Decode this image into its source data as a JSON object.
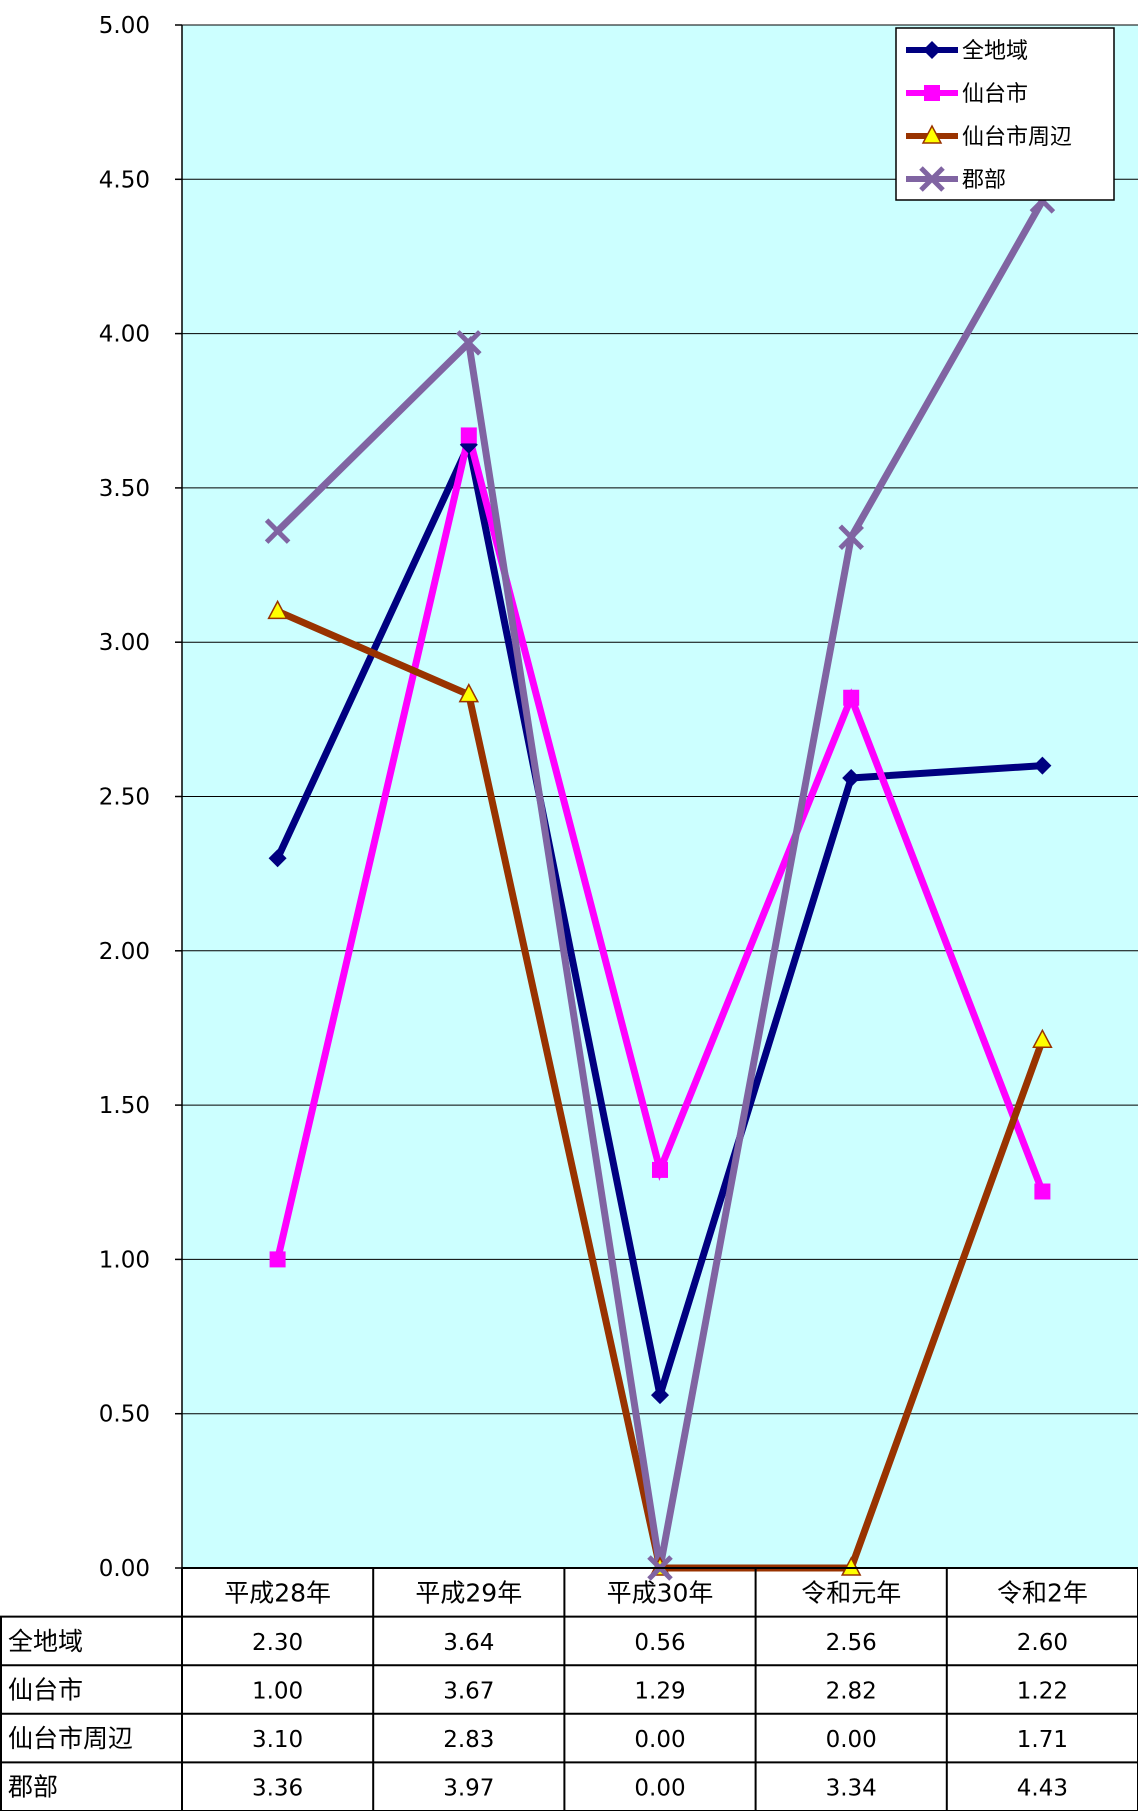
{
  "chart_data": {
    "type": "line",
    "categories": [
      "平成28年",
      "平成29年",
      "平成30年",
      "令和元年",
      "令和2年"
    ],
    "ylim": [
      0,
      5
    ],
    "yticks": [
      "0.00",
      "0.50",
      "1.00",
      "1.50",
      "2.00",
      "2.50",
      "3.00",
      "3.50",
      "4.00",
      "4.50",
      "5.00"
    ],
    "grid": true,
    "legend_position": "top-right",
    "plot_background": "#CCFFFF",
    "series": [
      {
        "name": "全地域",
        "color": "#000080",
        "marker": "diamond",
        "values": [
          2.3,
          3.64,
          0.56,
          2.56,
          2.6
        ],
        "labels": [
          "2.30",
          "3.64",
          "0.56",
          "2.56",
          "2.60"
        ]
      },
      {
        "name": "仙台市",
        "color": "#FF00FF",
        "marker": "square",
        "values": [
          1.0,
          3.67,
          1.29,
          2.82,
          1.22
        ],
        "labels": [
          "1.00",
          "3.67",
          "1.29",
          "2.82",
          "1.22"
        ]
      },
      {
        "name": "仙台市周辺",
        "color": "#993300",
        "marker": "triangle",
        "values": [
          3.1,
          2.83,
          0.0,
          0.0,
          1.71
        ],
        "labels": [
          "3.10",
          "2.83",
          "0.00",
          "0.00",
          "1.71"
        ]
      },
      {
        "name": "郡部",
        "color": "#8064A2",
        "marker": "x",
        "values": [
          3.36,
          3.97,
          0.0,
          3.34,
          4.43
        ],
        "labels": [
          "3.36",
          "3.97",
          "0.00",
          "3.34",
          "4.43"
        ]
      }
    ]
  }
}
